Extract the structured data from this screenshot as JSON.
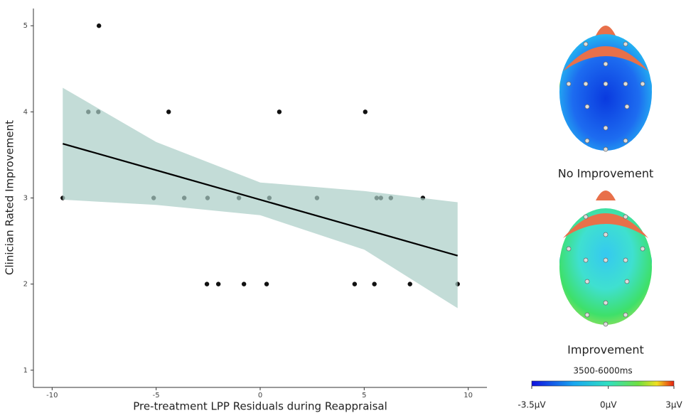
{
  "chart_data": {
    "type": "scatter",
    "xlabel": "Pre-treatment LPP Residuals during Reappraisal",
    "ylabel": "Clinician Rated Improvement",
    "xlim": [
      -10.9,
      10.9
    ],
    "ylim": [
      0.8,
      5.2
    ],
    "xticks": [
      -10,
      -5,
      0,
      5,
      10
    ],
    "yticks": [
      1,
      2,
      3,
      4,
      5
    ],
    "points": {
      "color": "#111111",
      "x": [
        -7.75,
        -8.26,
        -7.78,
        -4.4,
        0.92,
        5.05,
        -9.49,
        -5.12,
        -3.65,
        -2.53,
        -1.02,
        0.44,
        2.73,
        5.6,
        5.8,
        6.28,
        7.82,
        -2.56,
        -2.01,
        -0.78,
        0.31,
        4.54,
        5.49,
        7.2,
        9.49
      ],
      "y": [
        5,
        4,
        4,
        4,
        4,
        4,
        3,
        3,
        3,
        3,
        3,
        3,
        3,
        3,
        3,
        3,
        3,
        2,
        2,
        2,
        2,
        2,
        2,
        2,
        2
      ]
    },
    "fit": {
      "color": "#000000",
      "x": [
        -9.49,
        9.49
      ],
      "y": [
        3.63,
        2.33
      ]
    },
    "band": {
      "color": "#a9cdc6",
      "x": [
        -9.49,
        -5,
        0,
        5,
        9.49
      ],
      "upper": [
        4.28,
        3.65,
        3.18,
        3.08,
        2.95
      ],
      "lower": [
        2.98,
        2.92,
        2.8,
        2.4,
        1.72
      ]
    },
    "panels": [
      "No Improvement",
      "Improvement"
    ],
    "colorbar": {
      "title": "3500-6000ms",
      "lim": [
        -3.5,
        3
      ],
      "ticks": [
        {
          "value": -3.5,
          "label": "-3.5μV"
        },
        {
          "value": 0,
          "label": "0μV"
        },
        {
          "value": 3,
          "label": "3μV"
        }
      ]
    }
  }
}
